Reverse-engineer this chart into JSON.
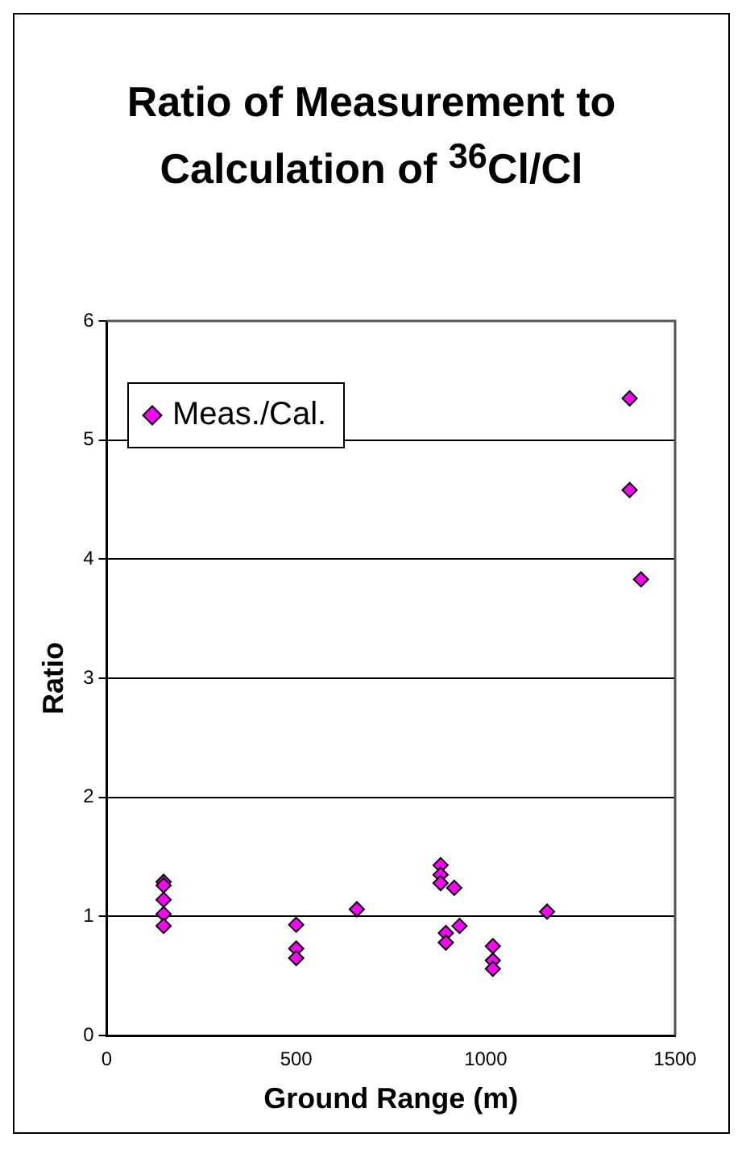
{
  "chart_data": {
    "type": "scatter",
    "title": "Ratio of Measurement to Calculation of $^{36}$Cl/Cl",
    "xlabel": "Ground Range (m)",
    "ylabel": "Ratio",
    "series": [
      {
        "name": "Meas./Cal.",
        "color": "#ff00ff",
        "x": [
          150,
          150,
          150,
          150,
          150,
          500,
          500,
          500,
          660,
          881,
          881,
          881,
          895,
          895,
          917,
          931,
          1019,
          1019,
          1019,
          1162,
          1380,
          1380,
          1410
        ],
        "values": [
          1.29,
          1.26,
          1.14,
          1.02,
          0.92,
          0.93,
          0.73,
          0.65,
          1.06,
          1.43,
          1.35,
          1.28,
          0.86,
          0.78,
          1.24,
          0.92,
          0.75,
          0.63,
          0.56,
          1.04,
          5.35,
          4.58,
          3.83
        ]
      }
    ],
    "xlim": [
      0,
      1500
    ],
    "xticks": [
      0,
      500,
      1000,
      1500
    ],
    "ylim": [
      0,
      6
    ],
    "yticks": [
      0,
      1,
      2,
      3,
      4,
      5,
      6
    ],
    "grid": "y",
    "legend": "top left",
    "marker": "diamond"
  }
}
